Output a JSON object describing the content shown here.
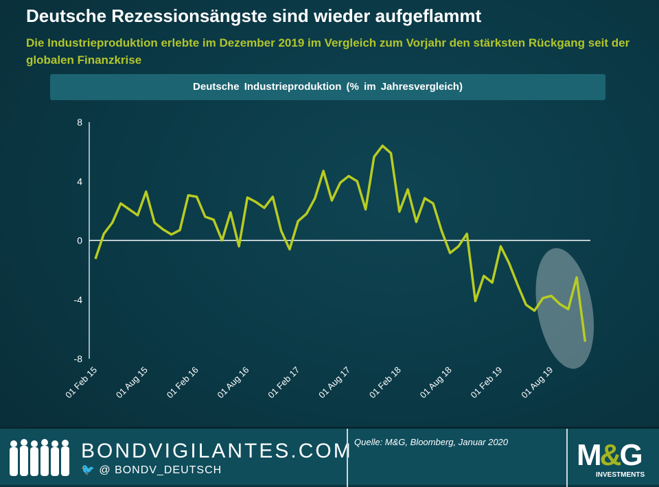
{
  "header": {
    "title": "Deutsche Rezessionsängste sind wieder aufgeflammt",
    "subtitle": "Die Industrieproduktion erlebte im Dezember 2019 im Vergleich zum Vorjahr den stärksten Rückgang seit der globalen Finanzkrise"
  },
  "chart_data": {
    "type": "line",
    "title": "Deutsche  Industrieproduktion  (% im Jahresvergleich)",
    "xlabel": "",
    "ylabel": "",
    "ylim": [
      -8,
      8
    ],
    "yticks": [
      8,
      4,
      0,
      -4,
      -8
    ],
    "xtick_labels": [
      "01 Feb 15",
      "01 Aug 15",
      "01 Feb 16",
      "01 Aug 16",
      "01 Feb 17",
      "01 Aug 17",
      "01 Feb 18",
      "01 Aug 18",
      "01 Feb 19",
      "01 Aug 19"
    ],
    "x_start": "2015-02",
    "x_end": "2019-12",
    "frequency": "monthly",
    "line_color": "#b8cc22",
    "highlight": "ellipse around Aug 19 - Dec 19",
    "values": [
      -1.25,
      0.45,
      1.2,
      2.5,
      2.1,
      1.7,
      3.3,
      1.2,
      0.75,
      0.4,
      0.7,
      3.05,
      2.95,
      1.6,
      1.4,
      0.0,
      1.9,
      -0.4,
      2.9,
      2.6,
      2.2,
      2.95,
      0.65,
      -0.6,
      1.3,
      1.8,
      2.85,
      4.7,
      2.7,
      3.9,
      4.35,
      4.0,
      2.1,
      5.65,
      6.4,
      5.9,
      1.95,
      3.45,
      1.25,
      2.85,
      2.5,
      0.65,
      -0.85,
      -0.4,
      0.45,
      -4.1,
      -2.4,
      -2.85,
      -0.4,
      -1.55,
      -3.0,
      -4.35,
      -4.75,
      -3.9,
      -3.75,
      -4.3,
      -4.65,
      -2.5,
      -6.85
    ]
  },
  "footer": {
    "site": "BONDVIGILANTES.COM",
    "twitter": "@ BONDV_DEUTSCH",
    "source": "Quelle: M&G, Bloomberg, Januar 2020",
    "logo": "M&G",
    "logo_sub": "INVESTMENTS"
  }
}
